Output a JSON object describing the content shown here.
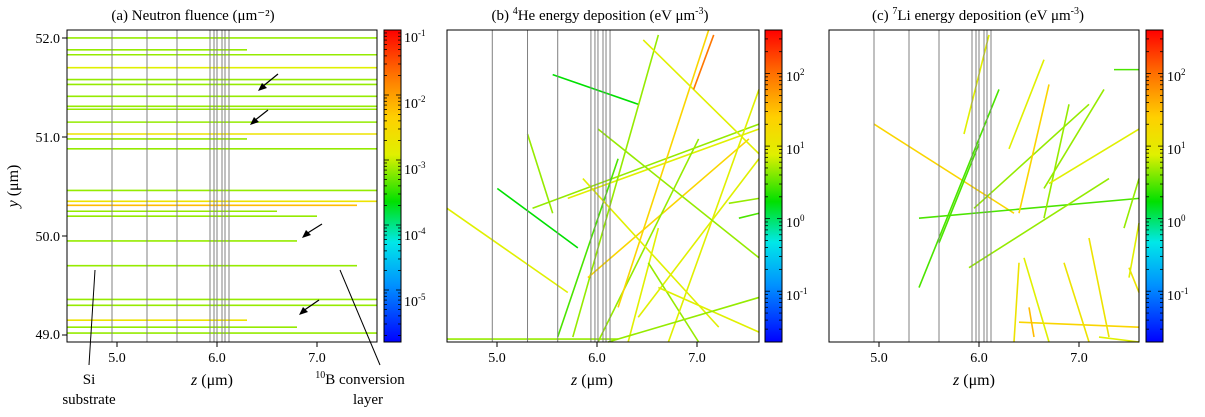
{
  "chart_data": [
    {
      "type": "line",
      "title": "(a) Neutron fluence (μm⁻²)",
      "xlabel": "z (μm)",
      "ylabel": "y (μm)",
      "xlim": [
        4.5,
        7.6
      ],
      "ylim": [
        48.95,
        52.1
      ],
      "x_ticks": [
        "5.0",
        "6.0",
        "7.0"
      ],
      "y_ticks": [
        "49.0",
        "50.0",
        "51.0",
        "52.0"
      ],
      "colorbar_ticks": [
        "10-1",
        "10-2",
        "10-3",
        "10-4",
        "10-5"
      ],
      "colorbar_log_range": [
        -5.8,
        -1
      ],
      "boundaries_z": [
        4.95,
        5.3,
        5.6,
        5.93,
        5.97,
        6.0,
        6.05,
        6.08,
        6.12
      ],
      "annotations": [
        {
          "text": "Si",
          "text2": "substrate"
        },
        {
          "text": "10B conversion",
          "text2": "layer"
        }
      ],
      "tracks": [
        {
          "y": 52.02,
          "x1": 4.5,
          "x2": 7.6,
          "c": 0.55
        },
        {
          "y": 51.9,
          "x1": 4.5,
          "x2": 6.3,
          "c": 0.55
        },
        {
          "y": 51.85,
          "x1": 4.5,
          "x2": 7.6,
          "c": 0.55
        },
        {
          "y": 51.72,
          "x1": 4.5,
          "x2": 7.6,
          "c": 0.6
        },
        {
          "y": 51.6,
          "x1": 4.5,
          "x2": 7.6,
          "c": 0.55
        },
        {
          "y": 51.55,
          "x1": 4.5,
          "x2": 7.6,
          "c": 0.55
        },
        {
          "y": 51.43,
          "x1": 4.5,
          "x2": 7.6,
          "c": 0.55
        },
        {
          "y": 51.33,
          "x1": 4.5,
          "x2": 7.6,
          "c": 0.55
        },
        {
          "y": 51.3,
          "x1": 4.5,
          "x2": 7.6,
          "c": 0.55
        },
        {
          "y": 51.17,
          "x1": 4.5,
          "x2": 7.6,
          "c": 0.55
        },
        {
          "y": 51.05,
          "x1": 4.5,
          "x2": 7.6,
          "c": 0.65
        },
        {
          "y": 51.0,
          "x1": 4.5,
          "x2": 6.3,
          "c": 0.55
        },
        {
          "y": 50.9,
          "x1": 4.5,
          "x2": 7.6,
          "c": 0.55
        },
        {
          "y": 50.48,
          "x1": 4.5,
          "x2": 7.6,
          "c": 0.55
        },
        {
          "y": 50.37,
          "x1": 4.5,
          "x2": 7.6,
          "c": 0.65
        },
        {
          "y": 50.33,
          "x1": 4.5,
          "x2": 7.4,
          "c": 0.75
        },
        {
          "y": 50.27,
          "x1": 4.5,
          "x2": 6.6,
          "c": 0.55
        },
        {
          "y": 50.22,
          "x1": 4.5,
          "x2": 7.0,
          "c": 0.55
        },
        {
          "y": 49.97,
          "x1": 4.5,
          "x2": 6.8,
          "c": 0.55
        },
        {
          "y": 49.72,
          "x1": 4.5,
          "x2": 7.4,
          "c": 0.55
        },
        {
          "y": 49.38,
          "x1": 4.5,
          "x2": 7.6,
          "c": 0.55
        },
        {
          "y": 49.32,
          "x1": 4.5,
          "x2": 7.6,
          "c": 0.55
        },
        {
          "y": 49.17,
          "x1": 4.5,
          "x2": 6.3,
          "c": 0.65
        },
        {
          "y": 49.1,
          "x1": 4.5,
          "x2": 6.8,
          "c": 0.55
        },
        {
          "y": 49.04,
          "x1": 4.5,
          "x2": 7.6,
          "c": 0.55
        }
      ]
    },
    {
      "type": "line",
      "title": "(b) 4He energy deposition (eV μm⁻³)",
      "xlabel": "z (μm)",
      "ylabel": "",
      "xlim": [
        4.5,
        7.6
      ],
      "ylim": [
        48.95,
        52.1
      ],
      "x_ticks": [
        "5.0",
        "6.0",
        "7.0"
      ],
      "colorbar_ticks": [
        "102",
        "101",
        "100",
        "10-1"
      ],
      "colorbar_log_range": [
        -1.7,
        2.6
      ],
      "boundaries_z": [
        4.95,
        5.3,
        5.6,
        5.93,
        5.97,
        6.0,
        6.05,
        6.08,
        6.12
      ],
      "tracks": [
        {
          "x1": 4.5,
          "y1": 50.3,
          "x2": 5.7,
          "y2": 49.45,
          "c": 0.6
        },
        {
          "x1": 4.5,
          "y1": 48.98,
          "x2": 6.2,
          "y2": 48.98,
          "c": 0.55
        },
        {
          "x1": 5.0,
          "y1": 50.5,
          "x2": 5.8,
          "y2": 49.9,
          "c": 0.45
        },
        {
          "x1": 5.3,
          "y1": 51.05,
          "x2": 5.55,
          "y2": 50.25,
          "c": 0.55
        },
        {
          "x1": 5.55,
          "y1": 51.65,
          "x2": 6.4,
          "y2": 51.35,
          "c": 0.45
        },
        {
          "x1": 5.35,
          "y1": 50.3,
          "x2": 7.6,
          "y2": 51.15,
          "c": 0.55
        },
        {
          "x1": 5.7,
          "y1": 50.4,
          "x2": 7.6,
          "y2": 51.1,
          "c": 0.6
        },
        {
          "x1": 5.75,
          "y1": 49.0,
          "x2": 6.6,
          "y2": 52.05,
          "c": 0.55
        },
        {
          "x1": 5.6,
          "y1": 49.0,
          "x2": 6.2,
          "y2": 50.8,
          "c": 0.5
        },
        {
          "x1": 5.9,
          "y1": 49.6,
          "x2": 7.5,
          "y2": 51.0,
          "c": 0.7
        },
        {
          "x1": 6.0,
          "y1": 48.95,
          "x2": 7.0,
          "y2": 51.0,
          "c": 0.55
        },
        {
          "x1": 6.2,
          "y1": 49.3,
          "x2": 7.1,
          "y2": 52.1,
          "c": 0.7
        },
        {
          "x1": 6.4,
          "y1": 49.2,
          "x2": 7.6,
          "y2": 50.8,
          "c": 0.6
        },
        {
          "x1": 6.45,
          "y1": 52.0,
          "x2": 7.6,
          "y2": 50.85,
          "c": 0.6
        },
        {
          "x1": 6.3,
          "y1": 48.95,
          "x2": 6.6,
          "y2": 50.1,
          "c": 0.6
        },
        {
          "x1": 6.5,
          "y1": 49.75,
          "x2": 7.0,
          "y2": 48.95,
          "c": 0.55
        },
        {
          "x1": 6.95,
          "y1": 51.5,
          "x2": 7.15,
          "y2": 52.05,
          "c": 0.85
        },
        {
          "x1": 6.7,
          "y1": 48.95,
          "x2": 7.6,
          "y2": 51.5,
          "c": 0.6
        },
        {
          "x1": 5.85,
          "y1": 50.6,
          "x2": 7.2,
          "y2": 49.1,
          "c": 0.6
        },
        {
          "x1": 6.0,
          "y1": 51.1,
          "x2": 7.6,
          "y2": 49.8,
          "c": 0.55
        },
        {
          "x1": 7.3,
          "y1": 50.35,
          "x2": 7.6,
          "y2": 50.4,
          "c": 0.55
        },
        {
          "x1": 7.4,
          "y1": 50.2,
          "x2": 7.6,
          "y2": 50.25,
          "c": 0.5
        },
        {
          "x1": 6.6,
          "y1": 49.5,
          "x2": 7.6,
          "y2": 49.05,
          "c": 0.6
        },
        {
          "x1": 6.1,
          "y1": 48.95,
          "x2": 7.6,
          "y2": 49.4,
          "c": 0.55
        }
      ]
    },
    {
      "type": "line",
      "title": "(c) 7Li energy deposition (eV μm⁻³)",
      "xlabel": "z (μm)",
      "ylabel": "",
      "xlim": [
        4.5,
        7.6
      ],
      "ylim": [
        48.95,
        52.1
      ],
      "x_ticks": [
        "5.0",
        "6.0",
        "7.0"
      ],
      "colorbar_ticks": [
        "102",
        "101",
        "100",
        "10-1"
      ],
      "colorbar_log_range": [
        -1.7,
        2.6
      ],
      "boundaries_z": [
        4.95,
        5.3,
        5.6,
        5.93,
        5.97,
        6.0,
        6.05,
        6.08,
        6.12
      ],
      "tracks": [
        {
          "x1": 4.95,
          "y1": 51.15,
          "x2": 6.35,
          "y2": 50.25,
          "c": 0.7
        },
        {
          "x1": 5.4,
          "y1": 50.2,
          "x2": 7.6,
          "y2": 50.4,
          "c": 0.5
        },
        {
          "x1": 5.4,
          "y1": 49.5,
          "x2": 6.2,
          "y2": 51.5,
          "c": 0.5
        },
        {
          "x1": 5.6,
          "y1": 49.95,
          "x2": 6.0,
          "y2": 50.95,
          "c": 0.5
        },
        {
          "x1": 5.85,
          "y1": 51.05,
          "x2": 6.1,
          "y2": 52.05,
          "c": 0.6
        },
        {
          "x1": 5.9,
          "y1": 49.7,
          "x2": 7.3,
          "y2": 50.6,
          "c": 0.55
        },
        {
          "x1": 5.95,
          "y1": 50.3,
          "x2": 7.1,
          "y2": 51.35,
          "c": 0.55
        },
        {
          "x1": 6.3,
          "y1": 50.9,
          "x2": 6.65,
          "y2": 51.8,
          "c": 0.6
        },
        {
          "x1": 6.4,
          "y1": 50.25,
          "x2": 6.7,
          "y2": 51.55,
          "c": 0.7
        },
        {
          "x1": 6.65,
          "y1": 50.5,
          "x2": 7.25,
          "y2": 51.5,
          "c": 0.55
        },
        {
          "x1": 6.65,
          "y1": 50.2,
          "x2": 6.9,
          "y2": 51.35,
          "c": 0.55
        },
        {
          "x1": 6.7,
          "y1": 50.55,
          "x2": 7.6,
          "y2": 51.1,
          "c": 0.6
        },
        {
          "x1": 6.4,
          "y1": 49.15,
          "x2": 7.6,
          "y2": 49.1,
          "c": 0.7
        },
        {
          "x1": 6.35,
          "y1": 48.95,
          "x2": 6.4,
          "y2": 49.75,
          "c": 0.65
        },
        {
          "x1": 6.45,
          "y1": 49.8,
          "x2": 6.7,
          "y2": 48.95,
          "c": 0.6
        },
        {
          "x1": 6.5,
          "y1": 49.3,
          "x2": 6.55,
          "y2": 49.0,
          "c": 0.75
        },
        {
          "x1": 6.85,
          "y1": 49.75,
          "x2": 7.1,
          "y2": 48.95,
          "c": 0.65
        },
        {
          "x1": 7.2,
          "y1": 49.0,
          "x2": 7.6,
          "y2": 48.95,
          "c": 0.6
        },
        {
          "x1": 7.1,
          "y1": 50.0,
          "x2": 7.3,
          "y2": 49.0,
          "c": 0.65
        },
        {
          "x1": 7.45,
          "y1": 50.1,
          "x2": 7.6,
          "y2": 50.6,
          "c": 0.55
        },
        {
          "x1": 7.5,
          "y1": 49.7,
          "x2": 7.6,
          "y2": 49.45,
          "c": 0.65
        },
        {
          "x1": 7.35,
          "y1": 51.7,
          "x2": 7.6,
          "y2": 51.7,
          "c": 0.5
        },
        {
          "x1": 7.5,
          "y1": 49.6,
          "x2": 7.6,
          "y2": 50.15,
          "c": 0.6
        }
      ]
    }
  ]
}
